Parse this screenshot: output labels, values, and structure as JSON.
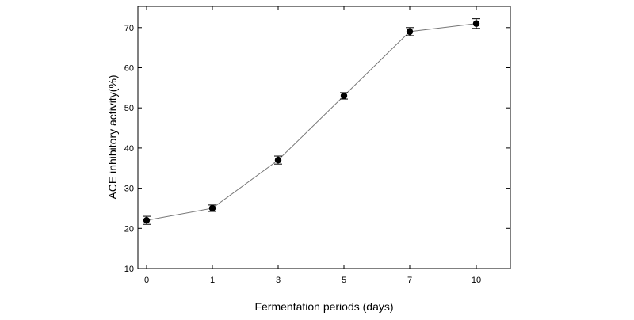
{
  "chart_data": {
    "type": "line",
    "title": "",
    "xlabel": "Fermentation periods (days)",
    "ylabel": "ACE inhibitory activity(%)",
    "categories": [
      "0",
      "1",
      "3",
      "5",
      "7",
      "10"
    ],
    "ylim": [
      10,
      75
    ],
    "yticks": [
      10,
      20,
      30,
      40,
      50,
      60,
      70
    ],
    "series": [
      {
        "values": [
          22,
          25,
          37,
          53,
          69,
          71
        ],
        "errors": [
          1.0,
          0.8,
          1.0,
          0.8,
          1.0,
          1.2
        ]
      }
    ],
    "grid": false,
    "marker": "circle",
    "line_color": "#777777",
    "marker_color": "#000000"
  }
}
